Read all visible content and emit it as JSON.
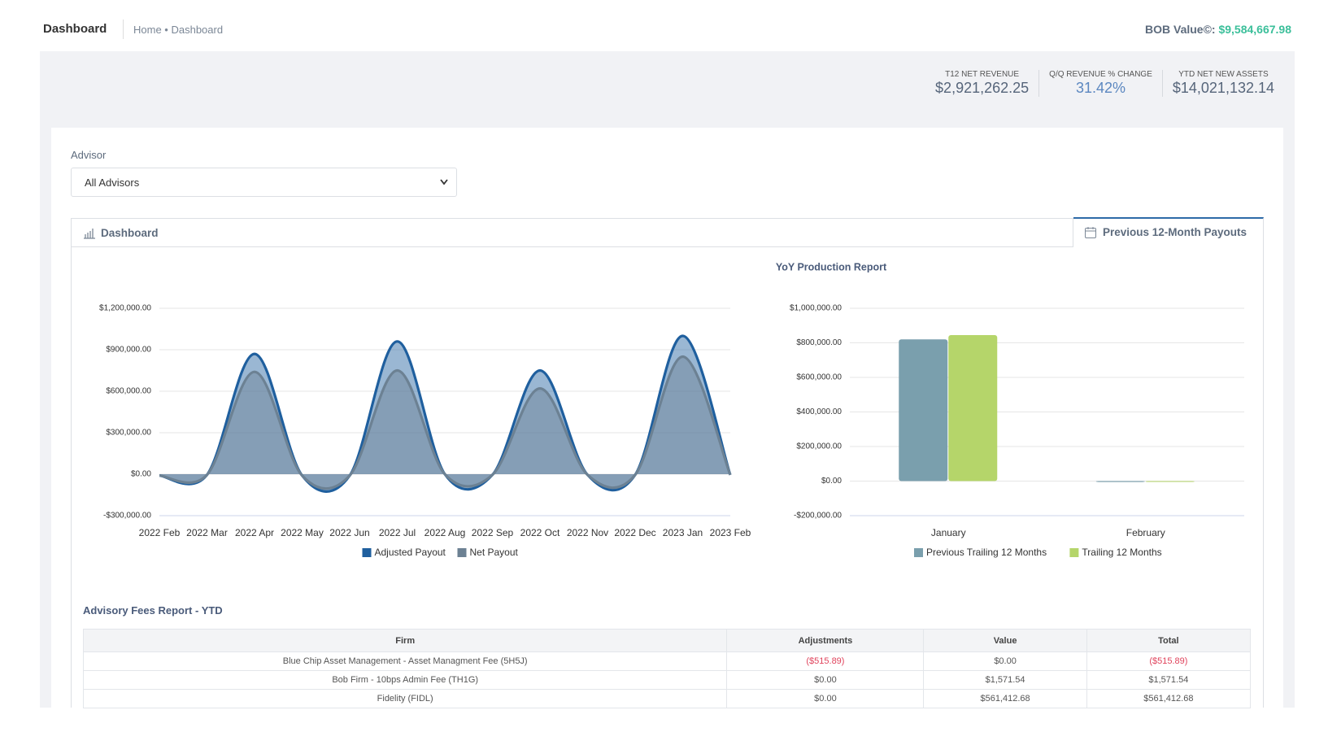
{
  "header": {
    "title": "Dashboard",
    "breadcrumb": [
      "Home",
      "Dashboard"
    ],
    "bob_label": "BOB Value©:",
    "bob_value": "$9,584,667.98"
  },
  "kpis": [
    {
      "label": "T12 NET REVENUE",
      "value": "$2,921,262.25"
    },
    {
      "label": "Q/Q REVENUE % CHANGE",
      "value": "31.42%"
    },
    {
      "label": "YTD NET NEW ASSETS",
      "value": "$14,021,132.14"
    }
  ],
  "filter": {
    "label": "Advisor",
    "selected": "All Advisors"
  },
  "tabs": [
    "Dashboard",
    "Previous 12-Month Payouts"
  ],
  "chart_data": [
    {
      "type": "area",
      "categories": [
        "2022 Feb",
        "2022 Mar",
        "2022 Apr",
        "2022 May",
        "2022 Jun",
        "2022 Jul",
        "2022 Aug",
        "2022 Sep",
        "2022 Oct",
        "2022 Nov",
        "2022 Dec",
        "2023 Jan",
        "2023 Feb"
      ],
      "series": [
        {
          "name": "Adjusted Payout",
          "color": "#1f5f9e",
          "values": [
            -10000,
            -5000,
            870000,
            -10000,
            -10000,
            960000,
            0,
            -5000,
            750000,
            -5000,
            -5000,
            1000000,
            -5000
          ]
        },
        {
          "name": "Net Payout",
          "color": "#6c8193",
          "values": [
            -10000,
            -5000,
            740000,
            -10000,
            -10000,
            750000,
            0,
            -5000,
            620000,
            -5000,
            -5000,
            850000,
            -5000
          ]
        }
      ],
      "ylim": [
        -300000,
        1200000
      ],
      "yticks": [
        {
          "value": -300000,
          "label": "-$300,000.00"
        },
        {
          "value": 0,
          "label": "$0.00"
        },
        {
          "value": 300000,
          "label": "$300,000.00"
        },
        {
          "value": 600000,
          "label": "$600,000.00"
        },
        {
          "value": 900000,
          "label": "$900,000.00"
        },
        {
          "value": 1200000,
          "label": "$1,200,000.00"
        }
      ],
      "grid": true,
      "legend": "bottom"
    },
    {
      "type": "bar",
      "title": "YoY Production Report",
      "categories": [
        "January",
        "February"
      ],
      "series": [
        {
          "name": "Previous Trailing 12 Months",
          "color": "#7a9fad",
          "values": [
            820000,
            -5000
          ]
        },
        {
          "name": "Trailing 12 Months",
          "color": "#b5d56a",
          "values": [
            845000,
            -3000
          ]
        }
      ],
      "ylim": [
        -200000,
        1000000
      ],
      "yticks": [
        {
          "value": -200000,
          "label": "-$200,000.00"
        },
        {
          "value": 0,
          "label": "$0.00"
        },
        {
          "value": 200000,
          "label": "$200,000.00"
        },
        {
          "value": 400000,
          "label": "$400,000.00"
        },
        {
          "value": 600000,
          "label": "$600,000.00"
        },
        {
          "value": 800000,
          "label": "$800,000.00"
        },
        {
          "value": 1000000,
          "label": "$1,000,000.00"
        }
      ],
      "grid": true,
      "legend": "bottom"
    }
  ],
  "table": {
    "title": "Advisory Fees Report - YTD",
    "columns": [
      "Firm",
      "Adjustments",
      "Value",
      "Total"
    ],
    "rows": [
      [
        "Blue Chip Asset Management - Asset Managment Fee (5H5J)",
        "($515.89)",
        "$0.00",
        "($515.89)"
      ],
      [
        "Bob Firm - 10bps Admin Fee (TH1G)",
        "$0.00",
        "$1,571.54",
        "$1,571.54"
      ],
      [
        "Fidelity (FIDL)",
        "$0.00",
        "$561,412.68",
        "$561,412.68"
      ]
    ]
  }
}
